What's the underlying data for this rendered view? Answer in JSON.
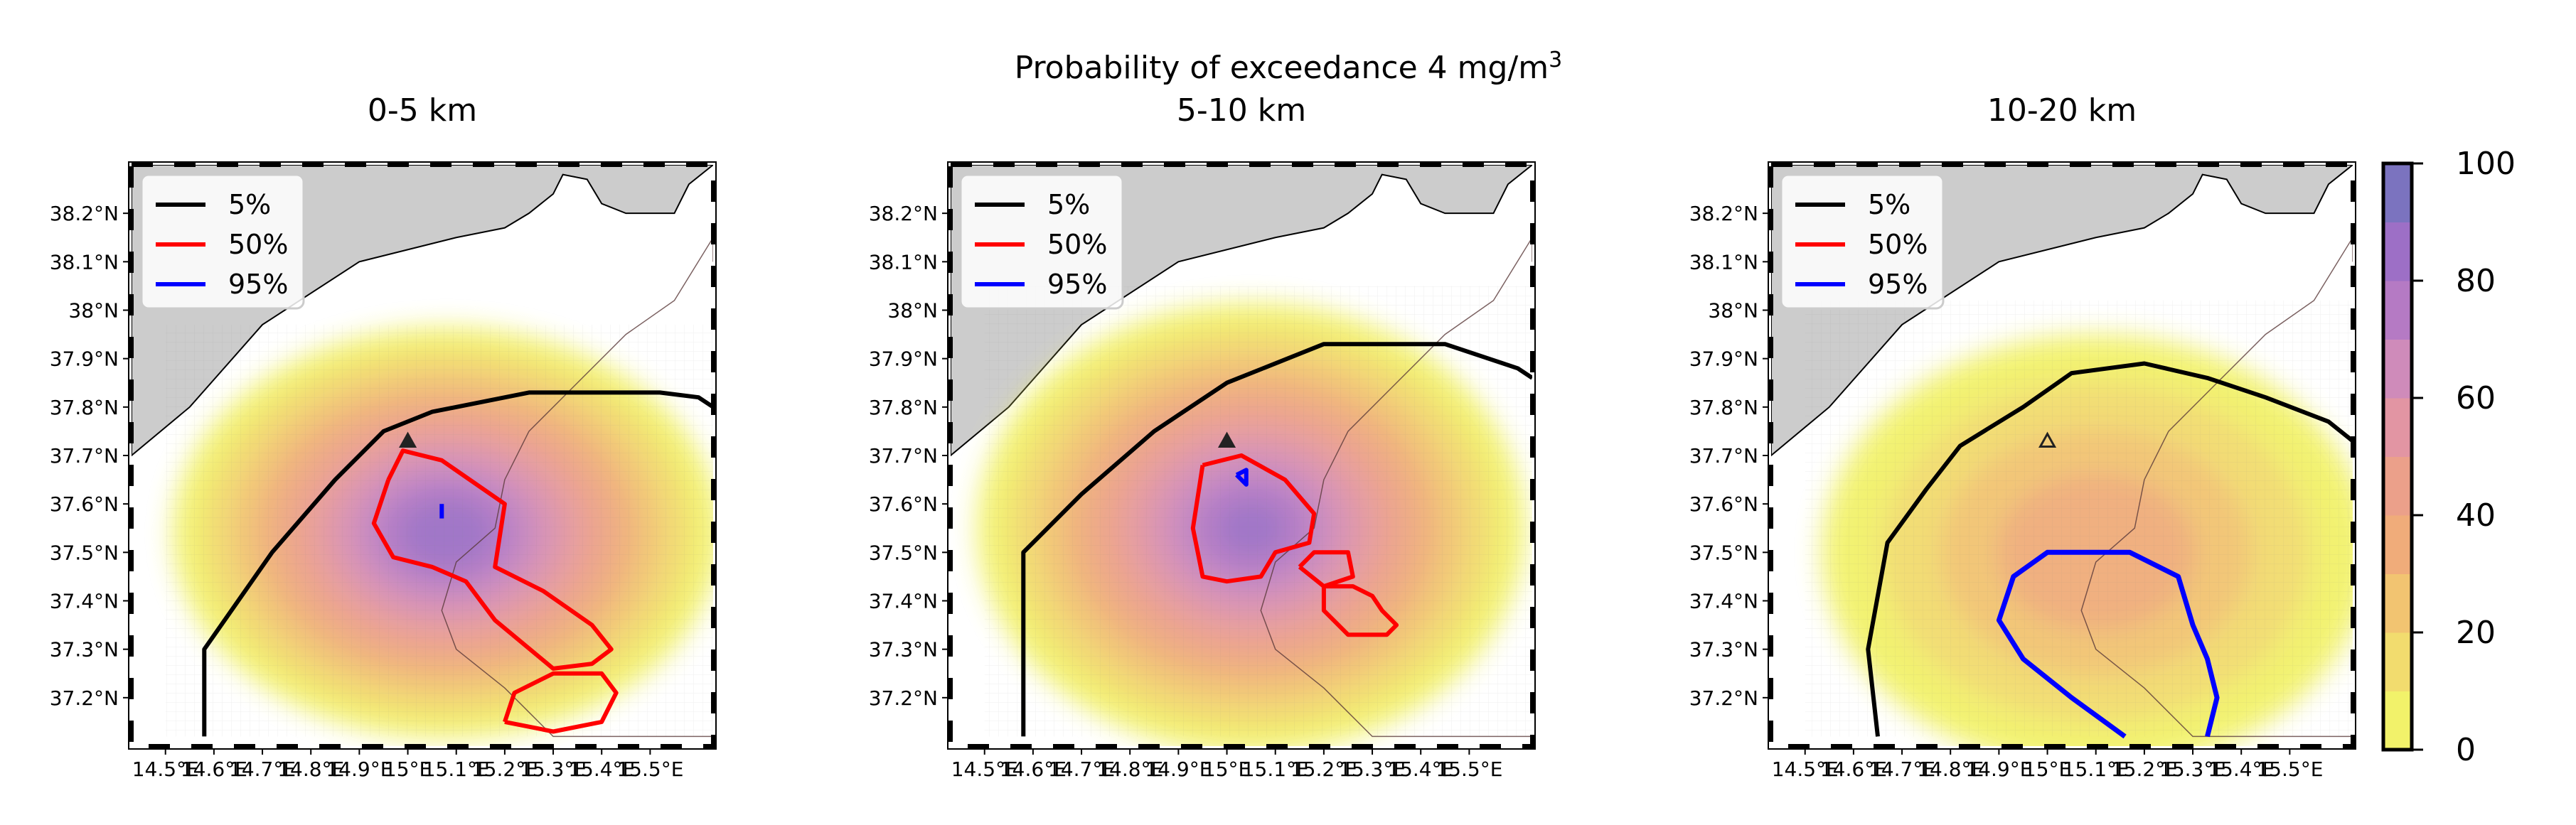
{
  "figure": {
    "title_main": "Probability of exceedance 4 mg/m",
    "title_sup": "3"
  },
  "chart_data": [
    {
      "type": "heatmap",
      "title": "0-5 km",
      "x_ticks": [
        "14.5°E",
        "14.6°E",
        "14.7°E",
        "14.8°E",
        "14.9°E",
        "15°E",
        "15.1°E",
        "15.2°E",
        "15.3°E",
        "15.4°E",
        "15.5°E"
      ],
      "y_ticks": [
        "37.2°N",
        "37.3°N",
        "37.4°N",
        "37.5°N",
        "37.6°N",
        "37.7°N",
        "37.8°N",
        "37.9°N",
        "38°N",
        "38.1°N",
        "38.2°N"
      ],
      "xlim": [
        14.43,
        15.63
      ],
      "ylim": [
        37.1,
        38.3
      ],
      "source_marker": {
        "lon": 15.0,
        "lat": 37.73
      },
      "prob_field": {
        "center": {
          "lon": 15.08,
          "lat": 37.54
        },
        "extent": {
          "lon_min": 14.5,
          "lon_max": 15.63,
          "lat_min": 37.12,
          "lat_max": 37.97
        },
        "peak_percent": 85
      },
      "contours": {
        "5%": [
          [
            14.58,
            37.12
          ],
          [
            14.58,
            37.3
          ],
          [
            14.72,
            37.5
          ],
          [
            14.85,
            37.65
          ],
          [
            14.95,
            37.75
          ],
          [
            15.05,
            37.79
          ],
          [
            15.25,
            37.83
          ],
          [
            15.52,
            37.83
          ],
          [
            15.6,
            37.82
          ],
          [
            15.63,
            37.8
          ]
        ],
        "50%": [
          [
            14.96,
            37.65
          ],
          [
            14.99,
            37.71
          ],
          [
            15.07,
            37.69
          ],
          [
            15.2,
            37.6
          ],
          [
            15.18,
            37.47
          ],
          [
            15.28,
            37.42
          ],
          [
            15.38,
            37.35
          ],
          [
            15.42,
            37.3
          ],
          [
            15.38,
            37.27
          ],
          [
            15.3,
            37.26
          ],
          [
            15.18,
            37.36
          ],
          [
            15.12,
            37.44
          ],
          [
            15.05,
            37.47
          ],
          [
            14.97,
            37.49
          ],
          [
            14.93,
            37.56
          ],
          [
            14.96,
            37.65
          ]
        ],
        "50%_b": [
          [
            15.2,
            37.15
          ],
          [
            15.22,
            37.21
          ],
          [
            15.3,
            37.25
          ],
          [
            15.4,
            37.25
          ],
          [
            15.43,
            37.21
          ],
          [
            15.4,
            37.15
          ],
          [
            15.3,
            37.13
          ],
          [
            15.2,
            37.15
          ]
        ],
        "95%": [
          [
            15.07,
            37.6
          ],
          [
            15.07,
            37.57
          ]
        ]
      }
    },
    {
      "type": "heatmap",
      "title": "5-10 km",
      "x_ticks": [
        "14.5°E",
        "14.6°E",
        "14.7°E",
        "14.8°E",
        "14.9°E",
        "15°E",
        "15.1°E",
        "15.2°E",
        "15.3°E",
        "15.4°E",
        "15.5°E"
      ],
      "y_ticks": [
        "37.2°N",
        "37.3°N",
        "37.4°N",
        "37.5°N",
        "37.6°N",
        "37.7°N",
        "37.8°N",
        "37.9°N",
        "38°N",
        "38.1°N",
        "38.2°N"
      ],
      "xlim": [
        14.43,
        15.63
      ],
      "ylim": [
        37.1,
        38.3
      ],
      "source_marker": {
        "lon": 15.0,
        "lat": 37.73
      },
      "prob_field": {
        "center": {
          "lon": 15.05,
          "lat": 37.55
        },
        "extent": {
          "lon_min": 14.5,
          "lon_max": 15.63,
          "lat_min": 37.12,
          "lat_max": 38.05
        },
        "peak_percent": 80
      },
      "contours": {
        "5%": [
          [
            14.58,
            37.12
          ],
          [
            14.58,
            37.5
          ],
          [
            14.7,
            37.62
          ],
          [
            14.85,
            37.75
          ],
          [
            15.0,
            37.85
          ],
          [
            15.2,
            37.93
          ],
          [
            15.45,
            37.93
          ],
          [
            15.6,
            37.88
          ],
          [
            15.63,
            37.86
          ]
        ],
        "50%": [
          [
            14.95,
            37.68
          ],
          [
            15.03,
            37.7
          ],
          [
            15.12,
            37.65
          ],
          [
            15.18,
            37.58
          ],
          [
            15.17,
            37.52
          ],
          [
            15.1,
            37.5
          ],
          [
            15.07,
            37.45
          ],
          [
            15.0,
            37.44
          ],
          [
            14.95,
            37.45
          ],
          [
            14.93,
            37.55
          ],
          [
            14.95,
            37.68
          ]
        ],
        "50%_b": [
          [
            15.15,
            37.47
          ],
          [
            15.18,
            37.5
          ],
          [
            15.25,
            37.5
          ],
          [
            15.26,
            37.45
          ],
          [
            15.2,
            37.43
          ],
          [
            15.15,
            37.47
          ]
        ],
        "50%_c": [
          [
            15.2,
            37.43
          ],
          [
            15.26,
            37.43
          ],
          [
            15.3,
            37.41
          ],
          [
            15.32,
            37.38
          ],
          [
            15.35,
            37.35
          ],
          [
            15.33,
            37.33
          ],
          [
            15.25,
            37.33
          ],
          [
            15.2,
            37.38
          ],
          [
            15.2,
            37.43
          ]
        ],
        "95%": [
          [
            15.02,
            37.66
          ],
          [
            15.04,
            37.64
          ],
          [
            15.04,
            37.67
          ],
          [
            15.02,
            37.66
          ]
        ]
      }
    },
    {
      "type": "heatmap",
      "title": "10-20 km",
      "x_ticks": [
        "14.5°E",
        "14.6°E",
        "14.7°E",
        "14.8°E",
        "14.9°E",
        "15°E",
        "15.1°E",
        "15.2°E",
        "15.3°E",
        "15.4°E",
        "15.5°E"
      ],
      "y_ticks": [
        "37.2°N",
        "37.3°N",
        "37.4°N",
        "37.5°N",
        "37.6°N",
        "37.7°N",
        "37.8°N",
        "37.9°N",
        "38°N",
        "38.1°N",
        "38.2°N"
      ],
      "xlim": [
        14.43,
        15.63
      ],
      "ylim": [
        37.1,
        38.3
      ],
      "source_marker": {
        "lon": 15.0,
        "lat": 37.73
      },
      "prob_field": {
        "center": {
          "lon": 15.1,
          "lat": 37.5
        },
        "extent": {
          "lon_min": 14.5,
          "lon_max": 15.63,
          "lat_min": 37.12,
          "lat_max": 38.02
        },
        "peak_percent": 35
      },
      "contours": {
        "5%": [
          [
            14.65,
            37.12
          ],
          [
            14.63,
            37.3
          ],
          [
            14.67,
            37.52
          ],
          [
            14.75,
            37.63
          ],
          [
            14.82,
            37.72
          ],
          [
            14.95,
            37.8
          ],
          [
            15.05,
            37.87
          ],
          [
            15.2,
            37.89
          ],
          [
            15.33,
            37.86
          ],
          [
            15.45,
            37.82
          ],
          [
            15.58,
            37.77
          ],
          [
            15.63,
            37.73
          ]
        ],
        "95%": [
          [
            15.16,
            37.12
          ],
          [
            15.05,
            37.2
          ],
          [
            14.95,
            37.28
          ],
          [
            14.9,
            37.36
          ],
          [
            14.93,
            37.45
          ],
          [
            15.0,
            37.5
          ],
          [
            15.17,
            37.5
          ],
          [
            15.27,
            37.45
          ],
          [
            15.3,
            37.35
          ],
          [
            15.33,
            37.28
          ],
          [
            15.35,
            37.2
          ],
          [
            15.33,
            37.12
          ]
        ]
      }
    }
  ],
  "legend": {
    "entries": [
      {
        "label": "5%",
        "color": "#000000"
      },
      {
        "label": "50%",
        "color": "#ff0000"
      },
      {
        "label": "95%",
        "color": "#0000ff"
      }
    ],
    "placement": "upper-left"
  },
  "colorbar": {
    "ticks": [
      "0",
      "20",
      "40",
      "60",
      "80",
      "100"
    ],
    "range": [
      0,
      100
    ],
    "levels": 10,
    "colors": [
      "#f2f26a",
      "#f2dc6e",
      "#f2c471",
      "#f0ac7a",
      "#eba08a",
      "#e295a3",
      "#cf8bba",
      "#b57ac4",
      "#9d6fc6",
      "#7b73bf"
    ]
  },
  "map_colors": {
    "land": "#cccccc",
    "sea": "#ffffff"
  }
}
